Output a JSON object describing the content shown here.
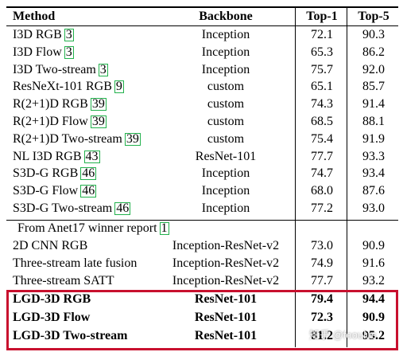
{
  "headers": {
    "method": "Method",
    "backbone": "Backbone",
    "top1": "Top-1",
    "top5": "Top-5"
  },
  "rows_a": [
    {
      "name": "I3D RGB",
      "ref": "3",
      "backbone": "Inception",
      "top1": "72.1",
      "top5": "90.3"
    },
    {
      "name": "I3D Flow",
      "ref": "3",
      "backbone": "Inception",
      "top1": "65.3",
      "top5": "86.2"
    },
    {
      "name": "I3D Two-stream",
      "ref": "3",
      "backbone": "Inception",
      "top1": "75.7",
      "top5": "92.0"
    },
    {
      "name": "ResNeXt-101 RGB",
      "ref": "9",
      "backbone": "custom",
      "top1": "65.1",
      "top5": "85.7"
    },
    {
      "name": "R(2+1)D RGB",
      "ref": "39",
      "backbone": "custom",
      "top1": "74.3",
      "top5": "91.4"
    },
    {
      "name": "R(2+1)D Flow",
      "ref": "39",
      "backbone": "custom",
      "top1": "68.5",
      "top5": "88.1"
    },
    {
      "name": "R(2+1)D Two-stream",
      "ref": "39",
      "backbone": "custom",
      "top1": "75.4",
      "top5": "91.9"
    },
    {
      "name": "NL I3D RGB",
      "ref": "43",
      "backbone": "ResNet-101",
      "top1": "77.7",
      "top5": "93.3"
    },
    {
      "name": "S3D-G RGB",
      "ref": "46",
      "backbone": "Inception",
      "top1": "74.7",
      "top5": "93.4"
    },
    {
      "name": "S3D-G Flow",
      "ref": "46",
      "backbone": "Inception",
      "top1": "68.0",
      "top5": "87.6"
    },
    {
      "name": "S3D-G Two-stream",
      "ref": "46",
      "backbone": "Inception",
      "top1": "77.2",
      "top5": "93.0"
    }
  ],
  "section_b": {
    "label": "From Anet17 winner report",
    "ref": "1"
  },
  "rows_b": [
    {
      "name": "2D CNN RGB",
      "backbone": "Inception-ResNet-v2",
      "top1": "73.0",
      "top5": "90.9"
    },
    {
      "name": "Three-stream late fusion",
      "backbone": "Inception-ResNet-v2",
      "top1": "74.9",
      "top5": "91.6"
    },
    {
      "name": "Three-stream SATT",
      "backbone": "Inception-ResNet-v2",
      "top1": "77.7",
      "top5": "93.2"
    }
  ],
  "rows_c": [
    {
      "name": "LGD-3D RGB",
      "backbone": "ResNet-101",
      "top1": "79.4",
      "top5": "94.4"
    },
    {
      "name": "LGD-3D Flow",
      "backbone": "ResNet-101",
      "top1": "72.3",
      "top5": "90.9"
    },
    {
      "name": "LGD-3D Two-stream",
      "backbone": "ResNet-101",
      "top1": "81.2",
      "top5": "95.2"
    }
  ],
  "watermark": "知乎 @fooulus",
  "colors": {
    "highlight_box": "#c8102e",
    "ref_box": "#22b14c"
  }
}
